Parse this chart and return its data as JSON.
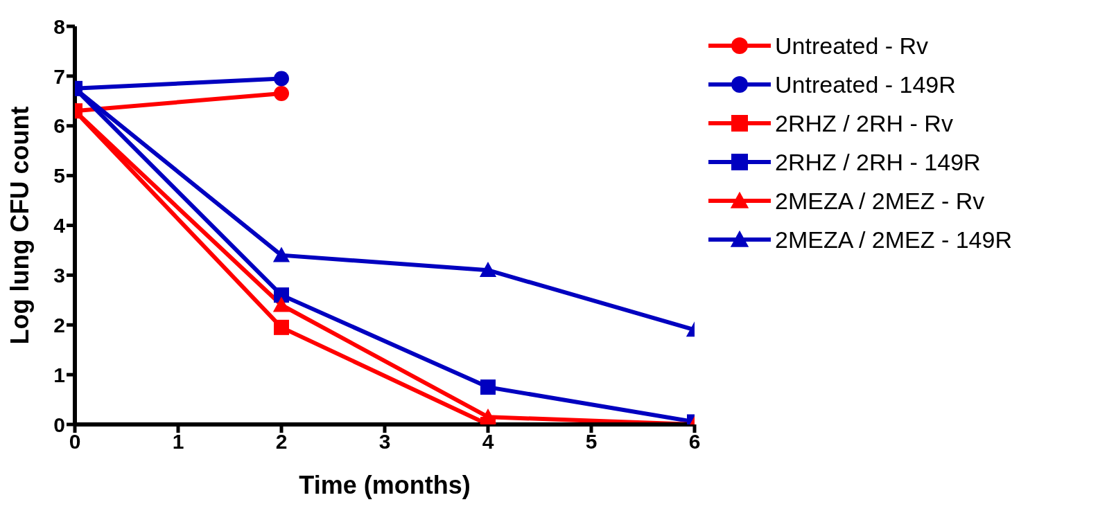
{
  "chart_data": {
    "type": "line",
    "xlabel": "Time (months)",
    "ylabel": "Log lung CFU count",
    "xlim": [
      0,
      6
    ],
    "xticks": [
      0,
      1,
      2,
      3,
      4,
      5,
      6
    ],
    "ylim": [
      0,
      8
    ],
    "yticks": [
      0,
      1,
      2,
      3,
      4,
      5,
      6,
      7,
      8
    ],
    "grid": false,
    "legend": "top right",
    "line_style": "solid",
    "series": [
      {
        "name": "Untreated - Rv",
        "color": "#ff0000",
        "marker": "circle",
        "x": [
          0,
          2
        ],
        "values": [
          6.3,
          6.65
        ]
      },
      {
        "name": "Untreated - 149R",
        "color": "#0000c0",
        "marker": "circle",
        "x": [
          0,
          2
        ],
        "values": [
          6.75,
          6.95
        ]
      },
      {
        "name": "2RHZ / 2RH - Rv",
        "color": "#ff0000",
        "marker": "square",
        "x": [
          0,
          2,
          4,
          6
        ],
        "values": [
          6.3,
          1.95,
          0,
          0
        ]
      },
      {
        "name": "2RHZ / 2RH - 149R",
        "color": "#0000c0",
        "marker": "square",
        "x": [
          0,
          2,
          4,
          6
        ],
        "values": [
          6.75,
          2.6,
          0.75,
          0.05
        ]
      },
      {
        "name": "2MEZA / 2MEZ - Rv",
        "color": "#ff0000",
        "marker": "triangle",
        "x": [
          0,
          2,
          4,
          6
        ],
        "values": [
          6.3,
          2.4,
          0.15,
          0
        ]
      },
      {
        "name": "2MEZA / 2MEZ - 149R",
        "color": "#0000c0",
        "marker": "triangle",
        "x": [
          0,
          2,
          4,
          6
        ],
        "values": [
          6.75,
          3.4,
          3.1,
          1.9
        ]
      }
    ]
  }
}
